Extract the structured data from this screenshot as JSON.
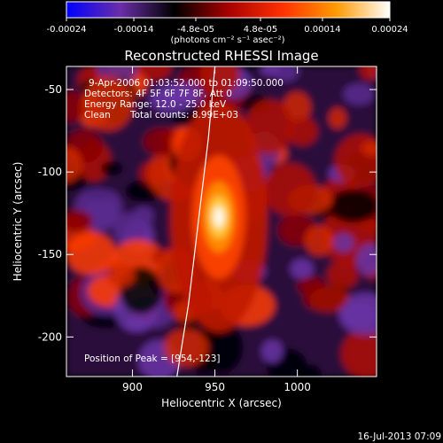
{
  "chart_data": {
    "type": "heatmap",
    "title": "Reconstructed RHESSI Image",
    "xlabel": "Heliocentric X (arcsec)",
    "ylabel": "Heliocentric Y (arcsec)",
    "xlim": [
      860,
      1048
    ],
    "ylim": [
      -224,
      -36
    ],
    "x_ticks": [
      900,
      950,
      1000
    ],
    "y_ticks": [
      -50,
      -100,
      -150,
      -200
    ],
    "grid": false,
    "colorbar": {
      "position": "top",
      "range": [
        -0.00024,
        0.00024
      ],
      "tick_values": [
        -0.00024,
        -0.00014,
        -4.8e-05,
        4.8e-05,
        0.00014,
        0.00024
      ],
      "tick_labels": [
        "-0.00024",
        "-0.00014",
        "-4.8e-05",
        "4.8e-05",
        "0.00014",
        "0.00024"
      ],
      "unit_label": "(photons cm⁻² s⁻¹ asec⁻²)",
      "colormap": [
        "#0000ff",
        "#6a2ea8",
        "#000000",
        "#a80000",
        "#ff3000",
        "#ff9a00",
        "#ffffff"
      ]
    },
    "annotations": {
      "time_range": "9-Apr-2006 01:03:52.000 to 01:09:50.000",
      "detectors": "Detectors: 4F 5F 6F 7F 8F, Att 0",
      "energy": "Energy Range: 12.0 - 25.0 keV",
      "algorithm": "Clean",
      "counts": "Total counts: 8.99E+03",
      "peak": "Position of Peak = [954,-123]"
    },
    "peak": {
      "x": 954,
      "y": -123
    },
    "limb": [
      [
        950,
        -36
      ],
      [
        946,
        -80
      ],
      [
        940,
        -130
      ],
      [
        934,
        -180
      ],
      [
        927,
        -224
      ]
    ],
    "footer": "16-Jul-2013 07:09"
  }
}
